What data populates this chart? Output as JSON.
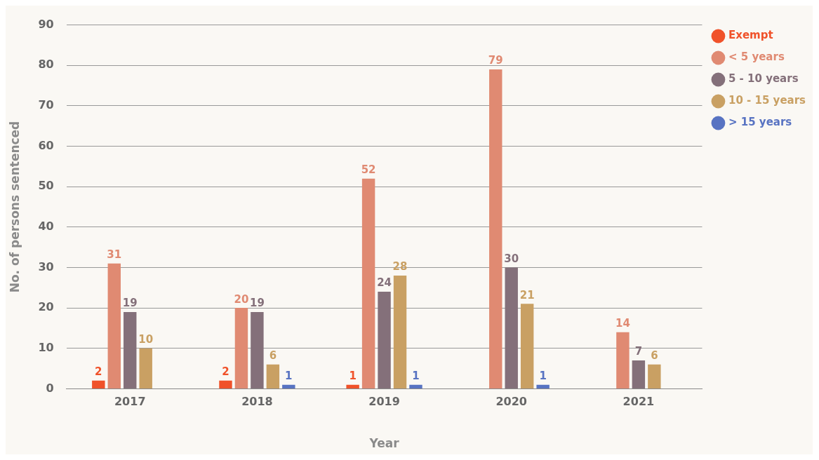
{
  "chart_data": {
    "type": "bar",
    "xlabel": "Year",
    "ylabel": "No. of persons sentenced",
    "categories": [
      "2017",
      "2018",
      "2019",
      "2020",
      "2021"
    ],
    "series": [
      {
        "name": "Exempt",
        "color": "#f0522a",
        "values": [
          2,
          2,
          1,
          null,
          null
        ]
      },
      {
        "name": "< 5 years",
        "color": "#e08a72",
        "values": [
          31,
          20,
          52,
          79,
          14
        ]
      },
      {
        "name": "5 - 10 years",
        "color": "#84707a",
        "values": [
          19,
          19,
          24,
          30,
          7
        ]
      },
      {
        "name": "10 - 15 years",
        "color": "#c9a063",
        "values": [
          10,
          6,
          28,
          21,
          6
        ]
      },
      {
        "name": "> 15 years",
        "color": "#5873c2",
        "values": [
          null,
          1,
          1,
          1,
          null
        ]
      }
    ],
    "ylim": [
      0,
      90
    ],
    "yticks": [
      0,
      10,
      20,
      30,
      40,
      50,
      60,
      70,
      80,
      90
    ],
    "grid": "y",
    "legend": "top right",
    "data_labels": true
  }
}
